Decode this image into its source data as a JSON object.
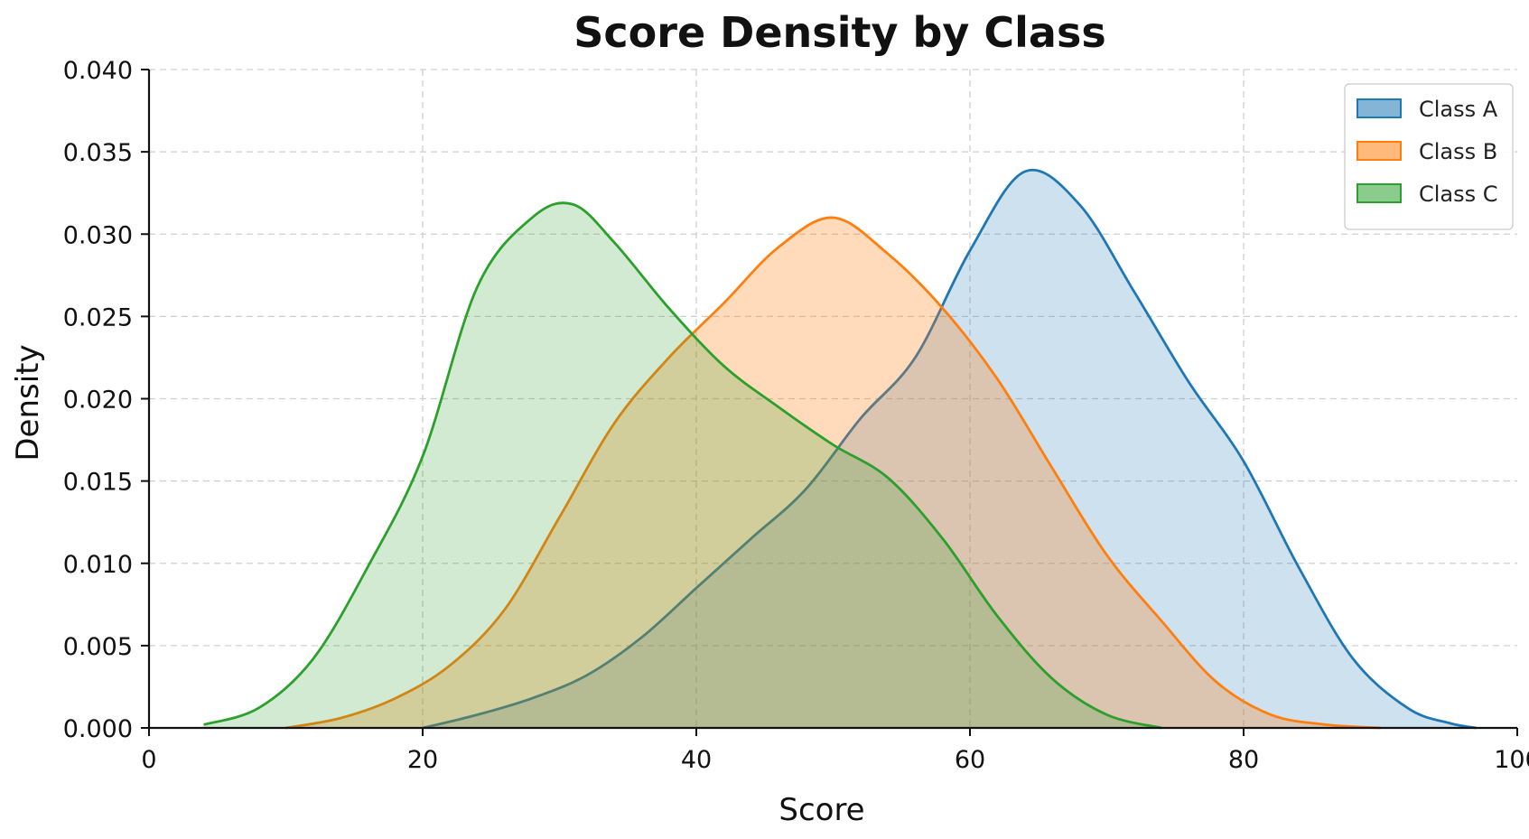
{
  "chart_data": {
    "type": "area",
    "title": "Score Density by Class",
    "xlabel": "Score",
    "ylabel": "Density",
    "xlim": [
      0,
      100
    ],
    "ylim": [
      0,
      0.04
    ],
    "xticks": [
      "0",
      "20",
      "40",
      "60",
      "80",
      "100"
    ],
    "yticks": [
      "0.000",
      "0.005",
      "0.010",
      "0.015",
      "0.020",
      "0.025",
      "0.030",
      "0.035",
      "0.040"
    ],
    "grid": true,
    "legend_position": "top-right",
    "series": [
      {
        "name": "Class A",
        "color": "#1f77b4",
        "fill_opacity": 0.22,
        "x": [
          20,
          24,
          28,
          32,
          36,
          40,
          44,
          48,
          52,
          56,
          60,
          64,
          68,
          72,
          76,
          80,
          84,
          88,
          92,
          95,
          97
        ],
        "y": [
          0.0,
          0.0008,
          0.0018,
          0.0032,
          0.0055,
          0.0085,
          0.0115,
          0.0145,
          0.0188,
          0.0225,
          0.029,
          0.0338,
          0.0318,
          0.0265,
          0.021,
          0.0162,
          0.0098,
          0.0042,
          0.0012,
          0.0003,
          0.0
        ]
      },
      {
        "name": "Class B",
        "color": "#ff7f0e",
        "fill_opacity": 0.28,
        "x": [
          10,
          14,
          18,
          22,
          26,
          30,
          34,
          38,
          42,
          46,
          50,
          54,
          58,
          62,
          66,
          70,
          74,
          78,
          82,
          86,
          90
        ],
        "y": [
          0.0,
          0.0006,
          0.0018,
          0.0038,
          0.0072,
          0.0128,
          0.0185,
          0.0225,
          0.0258,
          0.0292,
          0.031,
          0.0288,
          0.0255,
          0.0212,
          0.0158,
          0.0105,
          0.0065,
          0.0028,
          0.0008,
          0.0002,
          0.0
        ]
      },
      {
        "name": "Class C",
        "color": "#2ca02c",
        "fill_opacity": 0.22,
        "x": [
          4,
          8,
          12,
          16,
          20,
          24,
          28,
          31,
          34,
          38,
          42,
          46,
          50,
          54,
          58,
          62,
          66,
          70,
          74
        ],
        "y": [
          0.0002,
          0.0012,
          0.0042,
          0.0098,
          0.0165,
          0.0268,
          0.031,
          0.0318,
          0.0295,
          0.0255,
          0.022,
          0.0195,
          0.0172,
          0.0152,
          0.0115,
          0.0068,
          0.003,
          0.0008,
          0.0
        ]
      }
    ]
  }
}
